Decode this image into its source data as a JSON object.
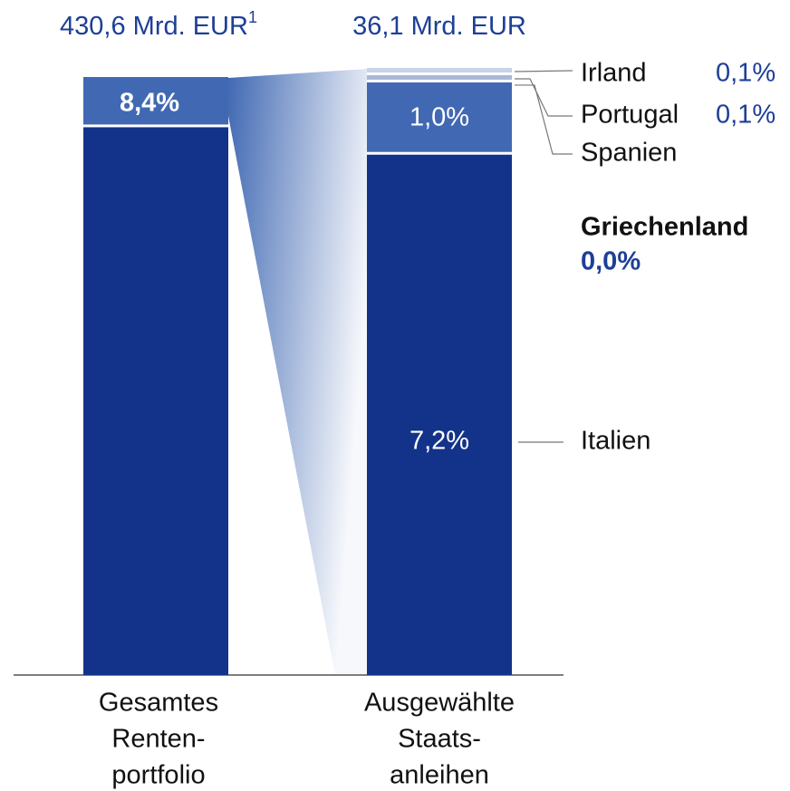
{
  "chart_data": {
    "type": "stacked_bar",
    "bars": [
      {
        "total_label": "430,6 Mrd. EUR",
        "footnote": "1",
        "category": [
          "Gesamtes",
          "Renten-",
          "portfolio"
        ],
        "segments": [
          {
            "value": 91.6,
            "color": "#13338a"
          },
          {
            "value": 8.4,
            "label": "8,4%",
            "color": "#4169b3"
          }
        ]
      },
      {
        "total_label": "36,1 Mrd. EUR",
        "category": [
          "Ausgewählte",
          "Staats-",
          "anleihen"
        ],
        "segments": [
          {
            "name": "Italien",
            "value": 7.2,
            "label": "7,2%",
            "color": "#13338a"
          },
          {
            "name": "Spanien",
            "value": 1.0,
            "label": "1,0%",
            "color": "#4169b3"
          },
          {
            "name": "Portugal",
            "value": 0.1,
            "label": "0,1%",
            "color": "#a8b8d8"
          },
          {
            "name": "Irland",
            "value": 0.1,
            "label": "0,1%",
            "color": "#c8d2e8"
          },
          {
            "name": "Griechenland",
            "value": 0.0,
            "label": "0,0%",
            "color": "#13338a"
          }
        ]
      }
    ]
  }
}
